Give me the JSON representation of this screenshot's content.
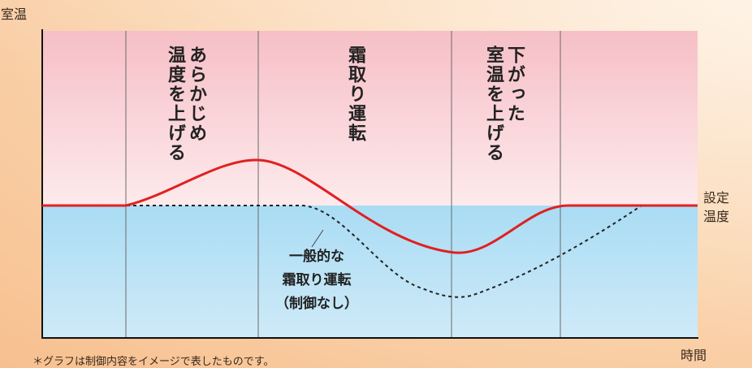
{
  "axes": {
    "y_label": "室温",
    "x_label": "時間",
    "setpoint_line1": "設定",
    "setpoint_line2": "温度"
  },
  "phases": {
    "preheat_line1": "あらかじめ",
    "preheat_line2": "温度を上げる",
    "defrost": "霜取り運転",
    "recover_line1": "下がった",
    "recover_line2": "室温を上げる"
  },
  "annotation": {
    "line1": "一般的な",
    "line2": "霜取り運転",
    "line3": "（制御なし）"
  },
  "footnote": "＊グラフは制御内容をイメージで表したものです。",
  "colors": {
    "controlled_curve": "#e02020",
    "uncontrolled_curve": "#222222",
    "warm_zone": "#f7c9cf",
    "cool_zone": "#c6e6f7"
  }
}
